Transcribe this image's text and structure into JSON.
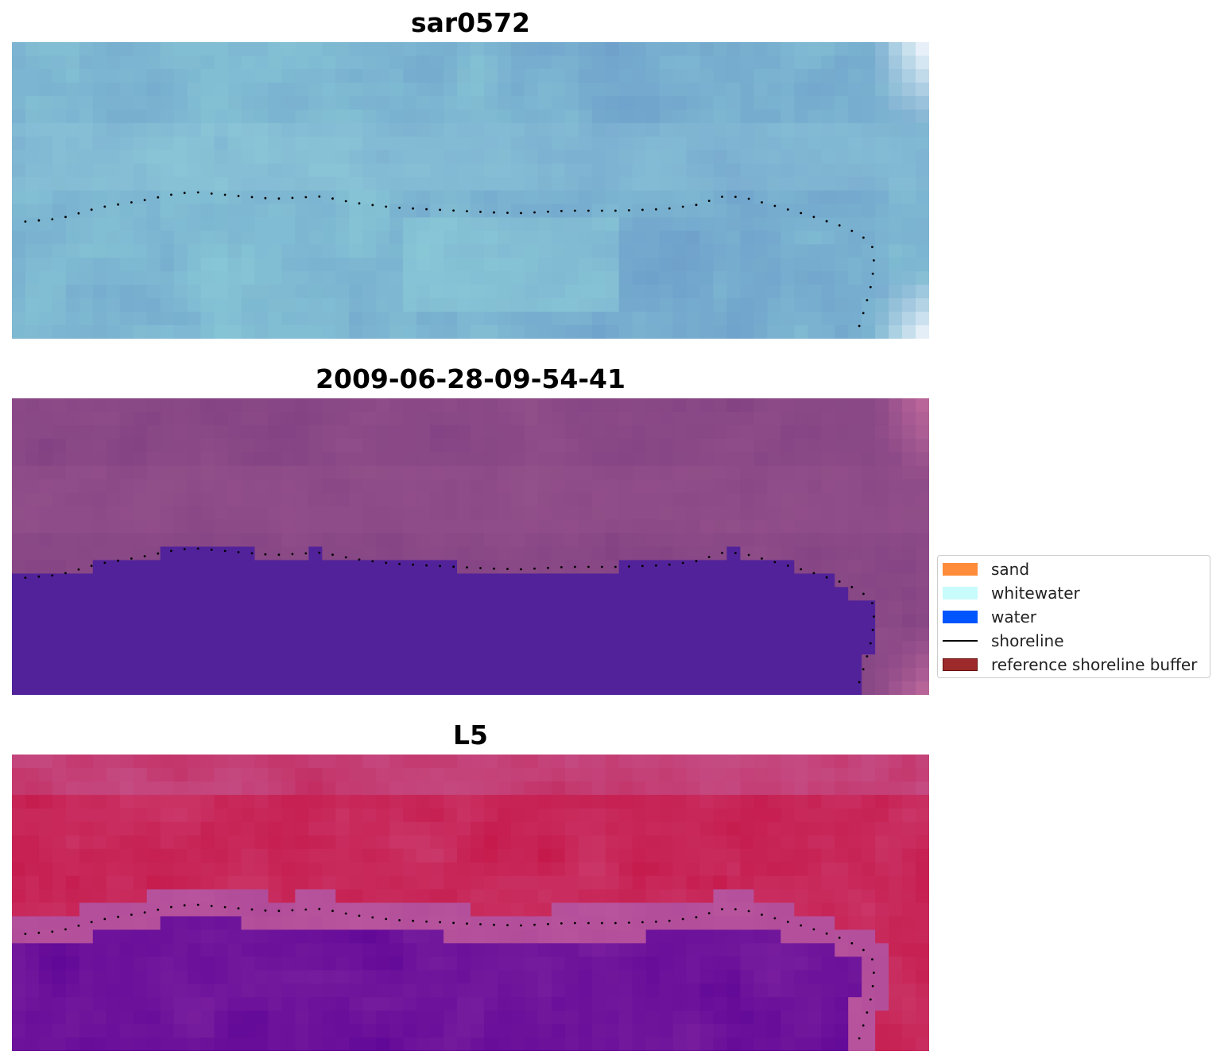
{
  "panels": [
    {
      "title": "sar0572",
      "colormap": "blues"
    },
    {
      "title": "2009-06-28-09-54-41",
      "colormap": "purple-classified"
    },
    {
      "title": "L5",
      "colormap": "red-purple"
    }
  ],
  "legend": {
    "items": [
      {
        "label": "sand",
        "color": "#ff8c3a",
        "kind": "patch"
      },
      {
        "label": "whitewater",
        "color": "#c8fbfb",
        "kind": "patch"
      },
      {
        "label": "water",
        "color": "#0055ff",
        "kind": "patch"
      },
      {
        "label": "shoreline",
        "color": "#000000",
        "kind": "line"
      },
      {
        "label": "reference shoreline buffer",
        "color": "#9c2a2a",
        "kind": "patch-outlined"
      }
    ]
  },
  "colors": {
    "water_class": "#52229a",
    "shoreline_dots": "#000000"
  }
}
